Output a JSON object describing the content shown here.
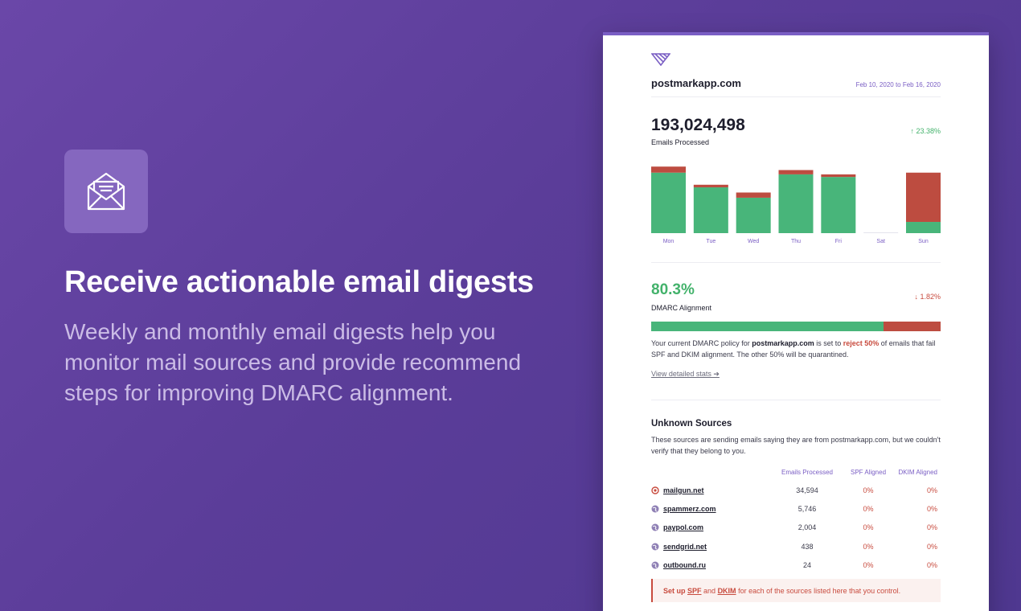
{
  "hero": {
    "icon": "envelope-open-icon",
    "title": "Receive actionable email digests",
    "description": "Weekly and monthly email digests help you monitor mail sources and provide recommend steps for improving DMARC alignment."
  },
  "email": {
    "logo_icon": "postmark-logo-icon",
    "domain": "postmarkapp.com",
    "date_range": "Feb 10, 2020 to Feb 16, 2020",
    "emails_processed": {
      "value": "193,024,498",
      "label": "Emails Processed",
      "change": "↑ 23.38%"
    },
    "dmarc": {
      "value": "80.3%",
      "label": "DMARC Alignment",
      "change": "↓ 1.82%",
      "pass_fraction": 0.803
    },
    "policy": {
      "prefix": "Your current DMARC policy for ",
      "domain": "postmarkapp.com",
      "middle": " is set to ",
      "action": "reject 50%",
      "suffix": " of emails that fail SPF and DKIM alignment. The other 50% will be quarantined."
    },
    "detail_link": "View detailed stats ➔",
    "unknown_sources": {
      "title": "Unknown Sources",
      "description": "These sources are sending emails saying they are from postmarkapp.com, but we couldn't verify that they belong to you.",
      "columns": [
        "Emails Processed",
        "SPF Aligned",
        "DKIM Aligned"
      ],
      "rows": [
        {
          "source": "mailgun.net",
          "icon": "mailgun-icon",
          "emails": "34,594",
          "spf": "0%",
          "dkim": "0%"
        },
        {
          "source": "spammerz.com",
          "icon": "globe-icon",
          "emails": "5,746",
          "spf": "0%",
          "dkim": "0%"
        },
        {
          "source": "paypol.com",
          "icon": "globe-icon",
          "emails": "2,004",
          "spf": "0%",
          "dkim": "0%"
        },
        {
          "source": "sendgrid.net",
          "icon": "globe-icon",
          "emails": "438",
          "spf": "0%",
          "dkim": "0%"
        },
        {
          "source": "outbound.ru",
          "icon": "globe-icon",
          "emails": "24",
          "spf": "0%",
          "dkim": "0%"
        }
      ]
    },
    "note": {
      "pre": "Set up ",
      "spf": "SPF",
      "and": " and ",
      "dkim": "DKIM",
      "post": " for each of the sources listed here that you control."
    }
  },
  "colors": {
    "pass": "#48b57a",
    "fail": "#bd4c40",
    "accent": "#7a5ec4"
  },
  "chart_data": {
    "type": "bar",
    "stacked": true,
    "categories": [
      "Mon",
      "Tue",
      "Wed",
      "Thu",
      "Fri",
      "Sat",
      "Sun"
    ],
    "series": [
      {
        "values": [
          70,
          53,
          41,
          68,
          65,
          0,
          13
        ]
      },
      {
        "values": [
          7,
          3,
          6,
          5,
          3,
          0,
          57
        ]
      }
    ],
    "ylim": [
      0,
      80
    ],
    "grid": false
  }
}
